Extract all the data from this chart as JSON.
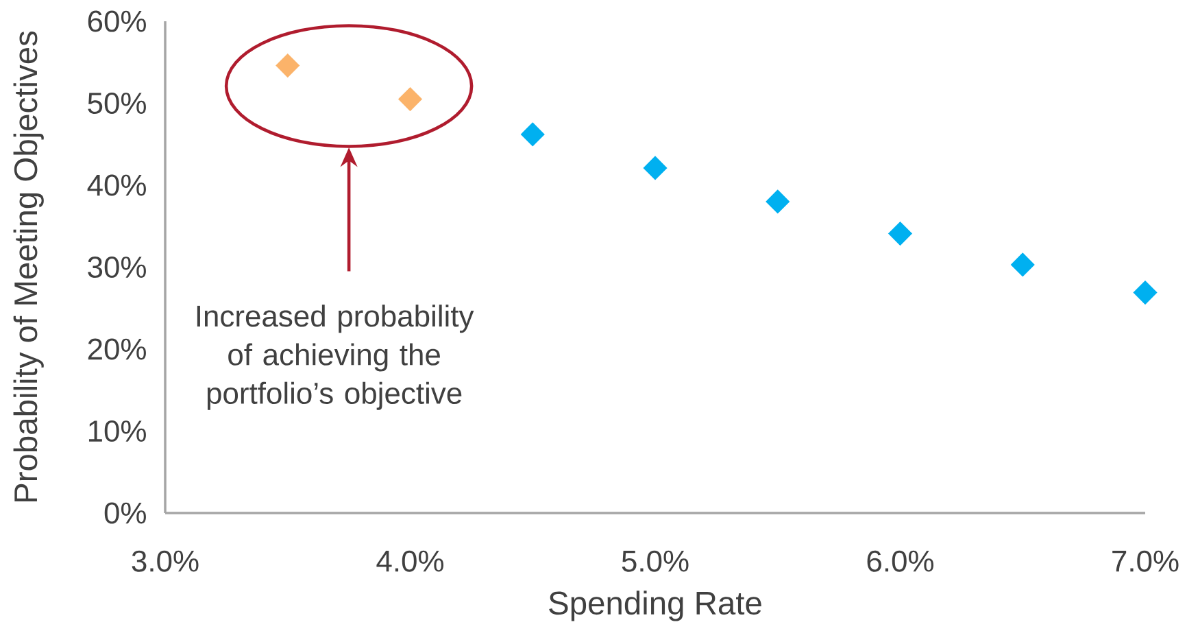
{
  "chart_data": {
    "type": "scatter",
    "xlabel": "Spending Rate",
    "ylabel": "Probability of Meeting Objectives",
    "series": [
      {
        "color": "#fbb36a",
        "x": [
          3.5,
          4.0
        ],
        "values": [
          54.6,
          50.5
        ]
      },
      {
        "color": "#00b0f0",
        "x": [
          4.5,
          5.0,
          5.5,
          6.0,
          6.5,
          7.0
        ],
        "values": [
          46.2,
          42.1,
          38.0,
          34.1,
          30.3,
          26.9
        ]
      }
    ],
    "xlim": [
      3.0,
      7.0
    ],
    "xticks": [
      {
        "value": 3.0,
        "label": "3.0%"
      },
      {
        "value": 4.0,
        "label": "4.0%"
      },
      {
        "value": 5.0,
        "label": "5.0%"
      },
      {
        "value": 6.0,
        "label": "6.0%"
      },
      {
        "value": 7.0,
        "label": "7.0%"
      }
    ],
    "ylim": [
      0,
      60
    ],
    "yticks": [
      {
        "value": 0,
        "label": "0%"
      },
      {
        "value": 10,
        "label": "10%"
      },
      {
        "value": 20,
        "label": "20%"
      },
      {
        "value": 30,
        "label": "30%"
      },
      {
        "value": 40,
        "label": "40%"
      },
      {
        "value": 50,
        "label": "50%"
      },
      {
        "value": 60,
        "label": "60%"
      }
    ],
    "marker": "diamond",
    "grid": false,
    "annotations": [
      "Increased probability of achieving the portfolio’s objective"
    ]
  }
}
